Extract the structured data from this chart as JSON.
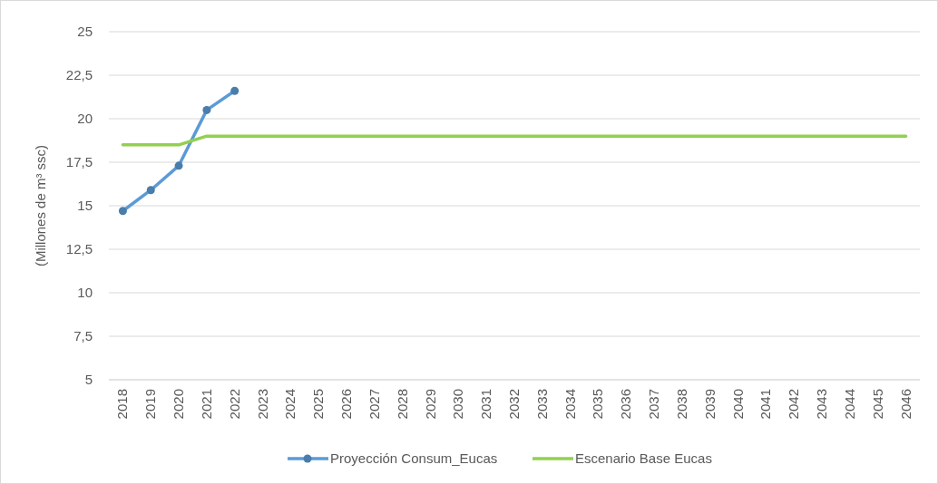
{
  "chart_data": {
    "type": "line",
    "ylabel": "(Millones de m³ ssc)",
    "categories": [
      "2018",
      "2019",
      "2020",
      "2021",
      "2022",
      "2023",
      "2024",
      "2025",
      "2026",
      "2027",
      "2028",
      "2029",
      "2030",
      "2031",
      "2032",
      "2033",
      "2034",
      "2035",
      "2036",
      "2037",
      "2038",
      "2039",
      "2040",
      "2041",
      "2042",
      "2043",
      "2044",
      "2045",
      "2046"
    ],
    "series": [
      {
        "name": "Proyección Consum_Eucas",
        "color": "#5b9bd5",
        "marker": "circle",
        "values": [
          14.7,
          15.9,
          17.3,
          20.5,
          21.6,
          null,
          null,
          null,
          null,
          null,
          null,
          null,
          null,
          null,
          null,
          null,
          null,
          null,
          null,
          null,
          null,
          null,
          null,
          null,
          null,
          null,
          null,
          null,
          null
        ]
      },
      {
        "name": "Escenario Base Eucas",
        "color": "#92d050",
        "marker": "none",
        "values": [
          18.5,
          18.5,
          18.5,
          19,
          19,
          19,
          19,
          19,
          19,
          19,
          19,
          19,
          19,
          19,
          19,
          19,
          19,
          19,
          19,
          19,
          19,
          19,
          19,
          19,
          19,
          19,
          19,
          19,
          19
        ]
      }
    ],
    "ylim": [
      5,
      25
    ],
    "yticks": [
      5,
      {
        "value": 7.5,
        "label": "7,5"
      },
      10,
      {
        "value": 12.5,
        "label": "12,5"
      },
      15,
      {
        "value": 17.5,
        "label": "17,5"
      },
      20,
      {
        "value": 22.5,
        "label": "22,5"
      },
      25
    ],
    "grid": "y",
    "legend": "bottom"
  }
}
